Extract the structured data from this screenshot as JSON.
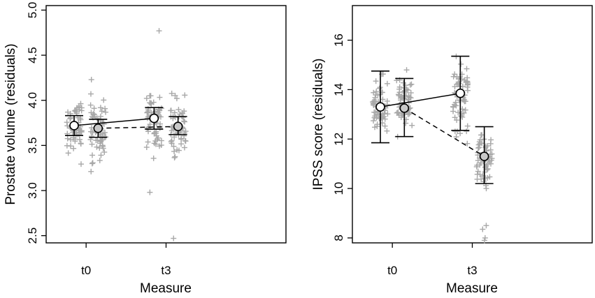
{
  "chart_data": [
    {
      "type": "scatter",
      "xlabel": "Measure",
      "ylabel": "Prostate volume (residuals)",
      "x_tick_labels": [
        "t0",
        "t3"
      ],
      "y_ticks": [
        2.5,
        3.0,
        3.5,
        4.0,
        4.5,
        5.0
      ],
      "y_tick_labels": [
        "2.5",
        "3.0",
        "3.5",
        "4.0",
        "4.5",
        "5.0"
      ],
      "ylim": [
        2.42,
        5.05
      ],
      "xlim": [
        0.5,
        3.5
      ],
      "grid": false,
      "series": [
        {
          "group": "solid-line",
          "points": [
            {
              "x": 0.85,
              "mean": 3.72,
              "lower": 3.61,
              "upper": 3.83,
              "fill": "#ffffff"
            },
            {
              "x": 1.85,
              "mean": 3.8,
              "lower": 3.68,
              "upper": 3.92,
              "fill": "#ffffff"
            }
          ]
        },
        {
          "group": "dashed-line",
          "points": [
            {
              "x": 1.15,
              "mean": 3.69,
              "lower": 3.59,
              "upper": 3.79,
              "fill": "#c8c8c8"
            },
            {
              "x": 2.15,
              "mean": 3.71,
              "lower": 3.62,
              "upper": 3.82,
              "fill": "#c8c8c8"
            }
          ]
        }
      ],
      "raw_points": [
        {
          "x": 0.85,
          "n": 60,
          "center": 3.72,
          "sd": 0.2,
          "min": 3.28,
          "max": 4.25,
          "seed": 11
        },
        {
          "x": 1.15,
          "n": 60,
          "center": 3.7,
          "sd": 0.28,
          "min": 3.1,
          "max": 4.27,
          "seed": 23
        },
        {
          "x": 1.85,
          "n": 60,
          "center": 3.78,
          "sd": 0.24,
          "min": 3.25,
          "max": 4.05,
          "seed": 37,
          "extra": [
            4.77,
            2.98
          ]
        },
        {
          "x": 2.15,
          "n": 60,
          "center": 3.72,
          "sd": 0.25,
          "min": 3.22,
          "max": 4.17,
          "seed": 53,
          "extra": [
            2.47
          ]
        }
      ]
    },
    {
      "type": "scatter",
      "xlabel": "Measure",
      "ylabel": "IPSS score (residuals)",
      "x_tick_labels": [
        "t0",
        "t3"
      ],
      "y_ticks": [
        8,
        10,
        12,
        14,
        16
      ],
      "y_tick_labels": [
        "8",
        "10",
        "12",
        "14",
        "16"
      ],
      "ylim": [
        7.8,
        17.4
      ],
      "xlim": [
        0.5,
        3.5
      ],
      "grid": false,
      "series": [
        {
          "group": "solid-line",
          "points": [
            {
              "x": 0.85,
              "mean": 13.3,
              "lower": 11.85,
              "upper": 14.75,
              "fill": "#ffffff"
            },
            {
              "x": 1.85,
              "mean": 13.85,
              "lower": 12.35,
              "upper": 15.35,
              "fill": "#ffffff"
            }
          ]
        },
        {
          "group": "dashed-line",
          "points": [
            {
              "x": 1.15,
              "mean": 13.25,
              "lower": 12.1,
              "upper": 14.45,
              "fill": "#c8c8c8"
            },
            {
              "x": 2.15,
              "mean": 11.3,
              "lower": 10.2,
              "upper": 12.5,
              "fill": "#c8c8c8"
            }
          ]
        }
      ],
      "raw_points": [
        {
          "x": 0.85,
          "n": 60,
          "center": 13.3,
          "sd": 0.75,
          "min": 11.0,
          "max": 15.8,
          "seed": 71
        },
        {
          "x": 1.15,
          "n": 60,
          "center": 13.5,
          "sd": 0.9,
          "min": 10.8,
          "max": 16.1,
          "seed": 89
        },
        {
          "x": 1.85,
          "n": 60,
          "center": 13.7,
          "sd": 1.0,
          "min": 11.3,
          "max": 16.9,
          "seed": 97
        },
        {
          "x": 2.15,
          "n": 60,
          "center": 11.2,
          "sd": 0.7,
          "min": 10.0,
          "max": 13.2,
          "seed": 113,
          "extra": [
            8.35,
            8.5,
            8.0,
            7.9
          ]
        }
      ]
    }
  ]
}
